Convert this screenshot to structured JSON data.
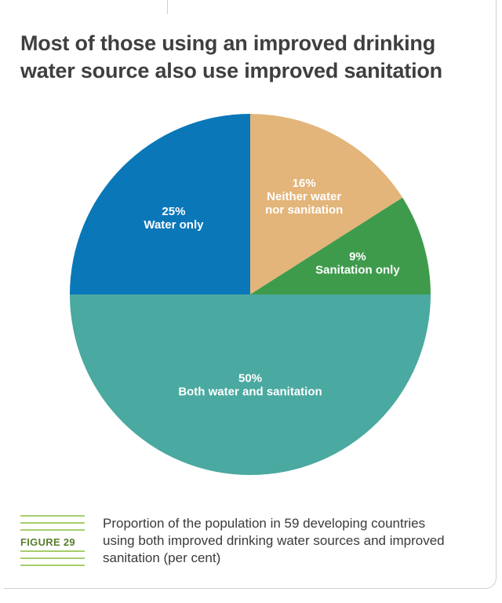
{
  "title": "Most of those using an improved drinking water source also use improved sanitation",
  "figure_label": "FIGURE 29",
  "caption": "Proportion of the population in 59 developing countries using both improved drinking water sources and improved sanitation (per cent)",
  "chart_data": {
    "type": "pie",
    "slices": [
      {
        "label_lines": [
          "16%",
          "Neither water",
          "nor sanitation"
        ],
        "value": 16,
        "color": "#e3b57a"
      },
      {
        "label_lines": [
          "9%",
          "Sanitation only"
        ],
        "value": 9,
        "color": "#3e9b4c"
      },
      {
        "label_lines": [
          "50%",
          "Both water and sanitation"
        ],
        "value": 50,
        "color": "#4aa9a0"
      },
      {
        "label_lines": [
          "25%",
          "Water only"
        ],
        "value": 25,
        "color": "#0a77b9"
      }
    ]
  }
}
